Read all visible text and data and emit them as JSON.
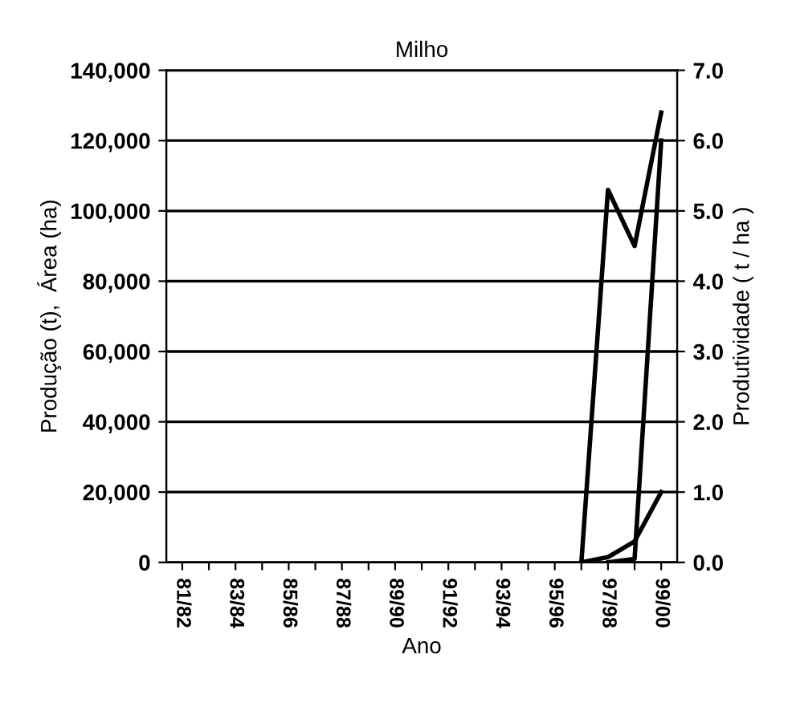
{
  "chart_data": {
    "type": "line",
    "title": "Milho",
    "xlabel": "Ano",
    "ylabel": "Produção (t),  Área (ha)",
    "y2label": "Produtividade ( t / ha )",
    "categories": [
      "81/82",
      null,
      "83/84",
      null,
      "85/86",
      null,
      "87/88",
      null,
      "89/90",
      null,
      "91/92",
      null,
      "93/94",
      null,
      "95/96",
      null,
      "97/98",
      null,
      "99/00"
    ],
    "series": [
      {
        "color": "#000000",
        "values": [
          null,
          null,
          null,
          null,
          null,
          null,
          null,
          null,
          null,
          null,
          null,
          null,
          null,
          null,
          null,
          null,
          0,
          1000,
          120000
        ]
      },
      {
        "color": "#000000",
        "values": [
          null,
          null,
          null,
          null,
          null,
          null,
          null,
          null,
          null,
          null,
          null,
          null,
          null,
          null,
          null,
          0,
          1500,
          6000,
          20000
        ]
      },
      {
        "color": "#000000",
        "axis": "y2",
        "values": [
          null,
          null,
          null,
          null,
          null,
          null,
          null,
          null,
          null,
          null,
          null,
          null,
          null,
          null,
          null,
          0,
          5.3,
          4.5,
          6.4
        ]
      }
    ],
    "ylim": [
      0,
      140000
    ],
    "yticks": [
      {
        "value": 0,
        "label": "0"
      },
      {
        "value": 20000,
        "label": "20,000"
      },
      {
        "value": 40000,
        "label": "40,000"
      },
      {
        "value": 60000,
        "label": "60,000"
      },
      {
        "value": 80000,
        "label": "80,000"
      },
      {
        "value": 100000,
        "label": "100,000"
      },
      {
        "value": 120000,
        "label": "120,000"
      },
      {
        "value": 140000,
        "label": "140,000"
      }
    ],
    "y2lim": [
      0,
      7
    ],
    "y2ticks": [
      {
        "value": 0,
        "label": "0.0"
      },
      {
        "value": 1,
        "label": "1.0"
      },
      {
        "value": 2,
        "label": "2.0"
      },
      {
        "value": 3,
        "label": "3.0"
      },
      {
        "value": 4,
        "label": "4.0"
      },
      {
        "value": 5,
        "label": "5.0"
      },
      {
        "value": 6,
        "label": "6.0"
      },
      {
        "value": 7,
        "label": "7.0"
      }
    ],
    "grid": "y",
    "line_style": "solid",
    "marker": "none"
  }
}
